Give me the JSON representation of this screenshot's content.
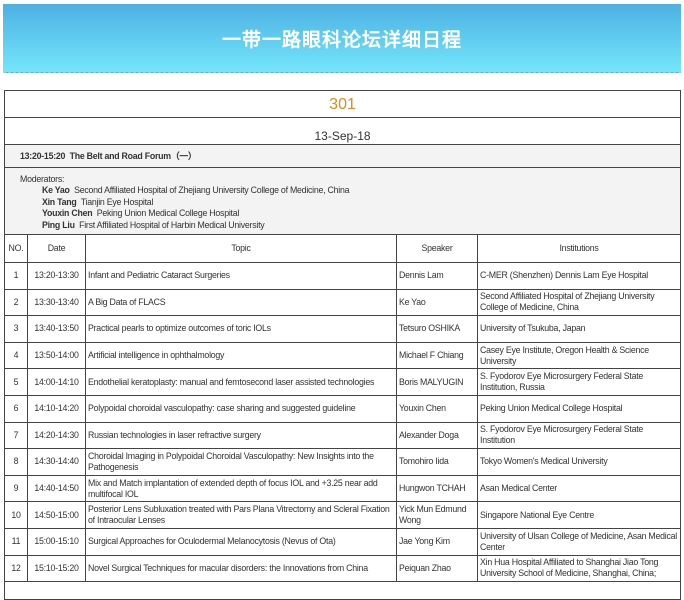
{
  "banner": {
    "title": "一带一路眼科论坛详细日程",
    "gradient_top": "#4cb0e2",
    "gradient_bottom": "#74e6fb"
  },
  "room": "301",
  "date": "13-Sep-18",
  "session": {
    "time": "13:20-15:20",
    "title": "The Belt and Road Forum（一）"
  },
  "moderators": {
    "label": "Moderators:",
    "items": [
      {
        "name": "Ke Yao",
        "inst": "Second Affiliated Hospital of Zhejiang University College of Medicine, China"
      },
      {
        "name": "Xin Tang",
        "inst": "Tianjin Eye Hospital"
      },
      {
        "name": "Youxin Chen",
        "inst": "Peking Union Medical College Hospital"
      },
      {
        "name": "Ping Liu",
        "inst": "First Affiliated Hospital of Harbin Medical University"
      }
    ]
  },
  "columns": [
    "NO.",
    "Date",
    "Topic",
    "Speaker",
    "Institutions"
  ],
  "rows": [
    {
      "no": "1",
      "date": "13:20-13:30",
      "topic": "Infant and Pediatric Cataract Surgeries",
      "speaker": "Dennis Lam",
      "inst": "C-MER (Shenzhen) Dennis Lam Eye Hospital"
    },
    {
      "no": "2",
      "date": "13:30-13:40",
      "topic": "A Big Data of FLACS",
      "speaker": "Ke Yao",
      "inst": "Second Affiliated Hospital of Zhejiang University College of Medicine, China"
    },
    {
      "no": "3",
      "date": "13:40-13:50",
      "topic": "Practical pearls to optimize outcomes of toric IOLs",
      "speaker": "Tetsuro OSHIKA",
      "inst": "University of Tsukuba, Japan"
    },
    {
      "no": "4",
      "date": "13:50-14:00",
      "topic": "Artificial intelligence in ophthalmology",
      "speaker": "Michael F Chiang",
      "inst": "Casey Eye Institute, Oregon Health & Science University"
    },
    {
      "no": "5",
      "date": "14:00-14:10",
      "topic": "Endothelial keratoplasty: manual and femtosecond laser assisted technologies",
      "speaker": "Boris MALYUGIN",
      "inst": "S. Fyodorov Eye Microsurgery Federal State Institution, Russia"
    },
    {
      "no": "6",
      "date": "14:10-14:20",
      "topic": "Polypoidal choroidal vasculopathy: case sharing and suggested guideline",
      "speaker": "Youxin Chen",
      "inst": "Peking Union Medical College Hospital"
    },
    {
      "no": "7",
      "date": "14:20-14:30",
      "topic": "Russian technologies in laser refractive surgery",
      "speaker": "Alexander Doga",
      "inst": "S. Fyodorov Eye Microsurgery Federal State Institution"
    },
    {
      "no": "8",
      "date": "14:30-14:40",
      "topic": "Choroidal Imaging in Polypoidal Choroidal Vasculopathy: New Insights into the Pathogenesis",
      "speaker": "Tomohiro Iida",
      "inst": "Tokyo Women's Medical University"
    },
    {
      "no": "9",
      "date": "14:40-14:50",
      "topic": "Mix and Match implantation of extended depth of focus IOL and +3.25 near add multifocal IOL",
      "speaker": "Hungwon TCHAH",
      "inst": "Asan Medical Center"
    },
    {
      "no": "10",
      "date": "14:50-15:00",
      "topic": "Posterior Lens Subluxation treated with Pars Plana Vitrectomy and Scleral Fixation of Intraocular Lenses",
      "speaker": "Yick Mun Edmund Wong",
      "inst": "Singapore National Eye Centre"
    },
    {
      "no": "11",
      "date": "15:00-15:10",
      "topic": "Surgical Approaches for Oculodermal Melanocytosis (Nevus of Ota)",
      "speaker": "Jae Yong Kim",
      "inst": "University of Ulsan College of Medicine, Asan Medical Center"
    },
    {
      "no": "12",
      "date": "15:10-15:20",
      "topic": "Novel Surgical Techniques for macular disorders: the Innovations from China",
      "speaker": "Peiquan Zhao",
      "inst": "Xin Hua Hospital Affiliated to Shanghai Jiao Tong University School of Medicine, Shanghai, China;"
    }
  ]
}
